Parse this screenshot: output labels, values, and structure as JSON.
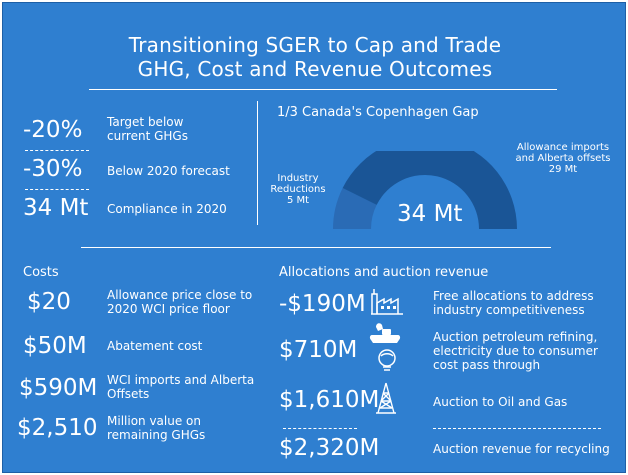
{
  "title": {
    "line1": "Transitioning SGER to Cap and Trade",
    "line2": "GHG, Cost and Revenue Outcomes"
  },
  "targets": [
    {
      "value": "-20%",
      "label_line1": "Target below",
      "label_line2": "current GHGs"
    },
    {
      "value": "-30%",
      "label_line1": "Below 2020 forecast",
      "label_line2": ""
    },
    {
      "value": "34 Mt",
      "label_line1": "Compliance in 2020",
      "label_line2": ""
    }
  ],
  "gap": {
    "title": "1/3 Canada's Copenhagen Gap",
    "total": "34 Mt",
    "industry_line1": "Industry",
    "industry_line2": "Reductions",
    "industry_line3": "5 Mt",
    "imports_line1": "Allowance imports",
    "imports_line2": "and Alberta offsets",
    "imports_line3": "29 Mt",
    "segments": [
      {
        "name": "industry",
        "value": 5,
        "color": "#2a6bb5"
      },
      {
        "name": "imports",
        "value": 29,
        "color": "#1a5596"
      }
    ]
  },
  "costs": {
    "heading": "Costs",
    "items": [
      {
        "value": "$20",
        "label_line1": "Allowance price close to",
        "label_line2": "2020 WCI price floor"
      },
      {
        "value": "$50M",
        "label_line1": "Abatement cost",
        "label_line2": ""
      },
      {
        "value": "$590M",
        "label_line1": "WCI imports and Alberta",
        "label_line2": "Offsets"
      },
      {
        "value": "$2,510",
        "label_line1": "Million value on",
        "label_line2": "remaining GHGs"
      }
    ]
  },
  "allocations": {
    "heading": "Allocations and auction revenue",
    "items": [
      {
        "value": "-$190M",
        "icon": "factory-icon",
        "label_line1": "Free allocations to address",
        "label_line2": "industry competitiveness",
        "label_line3": ""
      },
      {
        "value": "$710M",
        "icon": "gas-pump-lightbulb-icon",
        "label_line1": "Auction petroleum refining,",
        "label_line2": "electricity due to consumer",
        "label_line3": "cost pass through"
      },
      {
        "value": "$1,610M",
        "icon": "oil-derrick-icon",
        "label_line1": "Auction to Oil and Gas",
        "label_line2": "",
        "label_line3": ""
      },
      {
        "value": "$2,320M",
        "icon": "",
        "label_line1": "Auction revenue for recycling",
        "label_line2": "",
        "label_line3": ""
      }
    ]
  }
}
